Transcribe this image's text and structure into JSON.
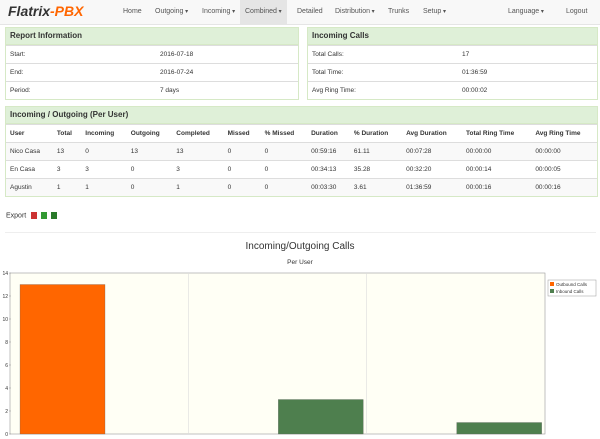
{
  "nav": {
    "logo": "Flatrix",
    "logo_suffix": "-PBX",
    "items": [
      "Home",
      "Outgoing",
      "Incoming",
      "Combined",
      "Detailed",
      "Distribution",
      "Trunks",
      "Setup"
    ],
    "right": [
      "Language",
      "Logout"
    ]
  },
  "report": {
    "title": "Report Information",
    "rows": [
      [
        "Start:",
        "2016-07-18"
      ],
      [
        "End:",
        "2016-07-24"
      ],
      [
        "Period:",
        "7 days"
      ]
    ]
  },
  "incoming": {
    "title": "Incoming Calls",
    "rows": [
      [
        "Total Calls:",
        "17"
      ],
      [
        "Total Time:",
        "01:36:59"
      ],
      [
        "Avg Ring Time:",
        "00:00:02"
      ]
    ]
  },
  "per_user": {
    "title": "Incoming / Outgoing (Per User)",
    "header": [
      "User",
      "Total",
      "Incoming",
      "Outgoing",
      "Completed",
      "Missed",
      "% Missed",
      "Duration",
      "% Duration",
      "Avg Duration",
      "Total Ring Time",
      "Avg Ring Time"
    ],
    "rows": [
      [
        "Nico Casa",
        "13",
        "0",
        "13",
        "13",
        "0",
        "0",
        "00:59:16",
        "61.11",
        "00:07:28",
        "00:00:00",
        "00:00:00"
      ],
      [
        "En Casa",
        "3",
        "3",
        "0",
        "3",
        "0",
        "0",
        "00:34:13",
        "35.28",
        "00:32:20",
        "00:00:14",
        "00:00:05"
      ],
      [
        "Agustin",
        "1",
        "1",
        "0",
        "1",
        "0",
        "0",
        "00:03:30",
        "3.61",
        "01:36:59",
        "00:00:16",
        "00:00:16"
      ]
    ]
  },
  "export": "Export",
  "chart_data": {
    "type": "bar",
    "title": "Incoming/Outgoing Calls",
    "subtitle": "Per User",
    "categories": [
      null,
      null,
      null
    ],
    "series": [
      {
        "name": "Outbound Calls",
        "color": "#ff6600",
        "values": [
          13,
          0,
          0
        ]
      },
      {
        "name": "Inbound Calls",
        "color": "#4e7f4e",
        "values": [
          0,
          3,
          1
        ]
      }
    ],
    "ylim": [
      0,
      14
    ],
    "yticks": [
      0,
      2,
      4,
      6,
      8,
      10,
      12,
      14
    ],
    "grid": true,
    "legend": "right"
  }
}
